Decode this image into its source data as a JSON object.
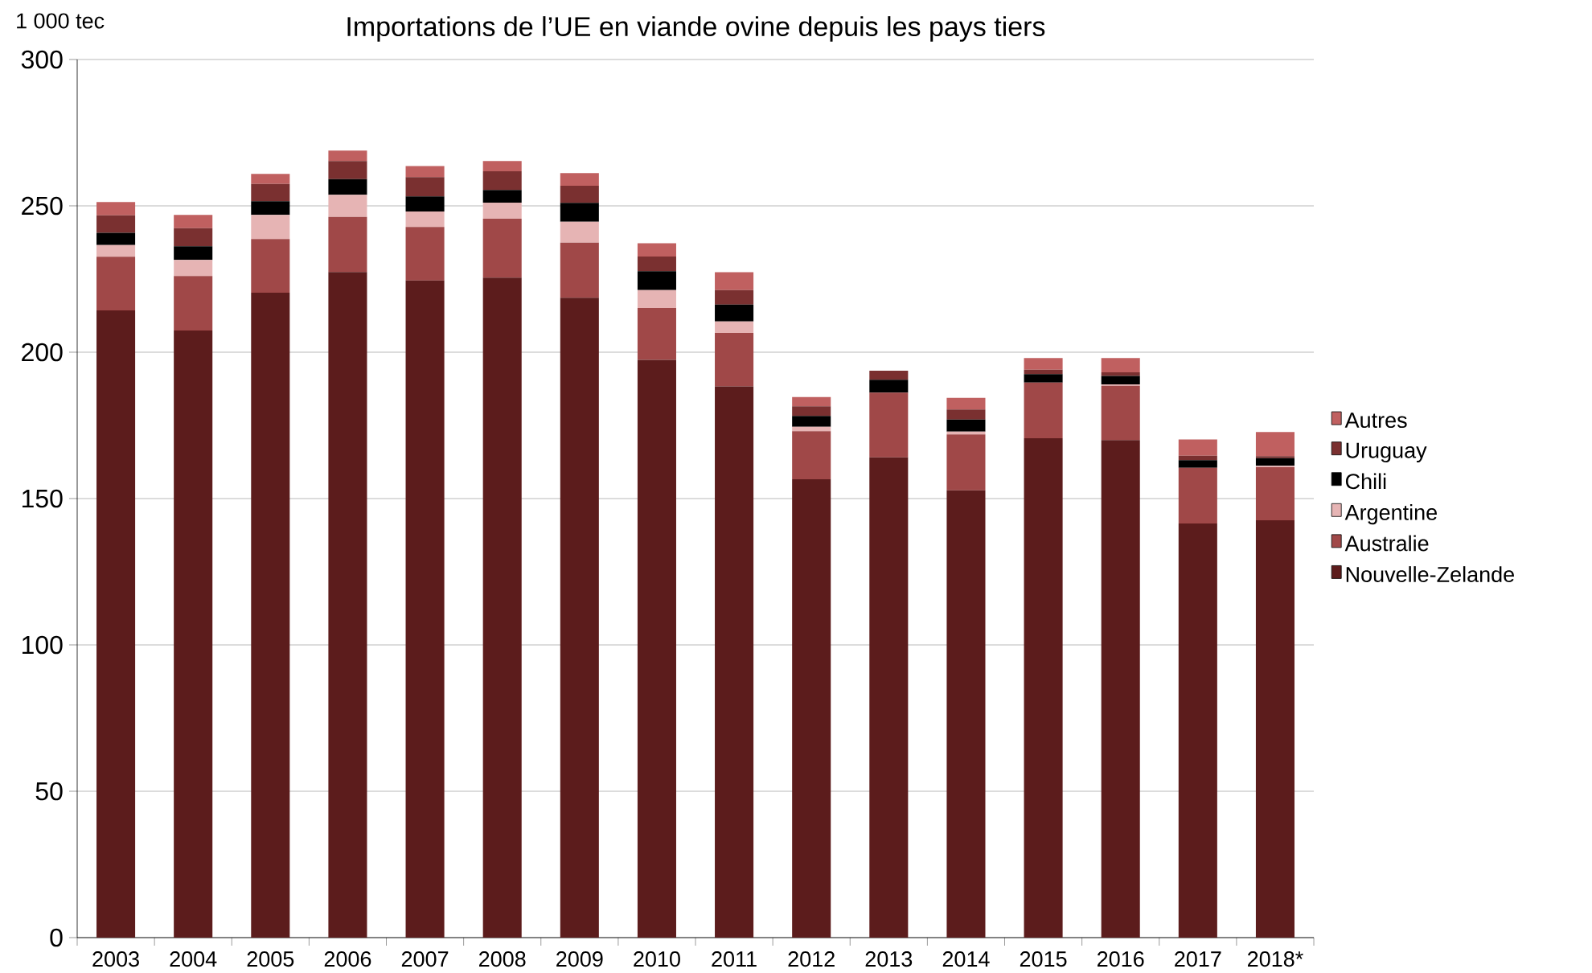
{
  "chart_data": {
    "type": "bar",
    "stacked": true,
    "title": "Importations de l’UE en viande ovine depuis les pays tiers",
    "ylabel": "1 000 tec",
    "categories": [
      "2003",
      "2004",
      "2005",
      "2006",
      "2007",
      "2008",
      "2009",
      "2010",
      "2011",
      "2012",
      "2013",
      "2014",
      "2015",
      "2016",
      "2017",
      "2018*"
    ],
    "series": [
      {
        "name": "Nouvelle-Zelande",
        "color": "#5c1c1c",
        "values": [
          214.3,
          207.4,
          220.3,
          227.4,
          224.5,
          225.5,
          218.6,
          197.4,
          188.3,
          156.6,
          164.1,
          152.8,
          170.6,
          170.0,
          141.5,
          142.6
        ]
      },
      {
        "name": "Australie",
        "color": "#a04848",
        "values": [
          18.3,
          18.6,
          18.4,
          18.8,
          18.3,
          20.1,
          18.8,
          17.7,
          18.3,
          16.4,
          22.1,
          19.1,
          19.0,
          18.5,
          19.0,
          18.1
        ]
      },
      {
        "name": "Argentine",
        "color": "#e6b4b4",
        "values": [
          4.0,
          5.5,
          8.2,
          7.6,
          5.3,
          5.5,
          7.2,
          6.1,
          3.9,
          1.5,
          null,
          1.0,
          null,
          0.5,
          null,
          0.5
        ]
      },
      {
        "name": "Chili",
        "color": "#000000",
        "values": [
          4.2,
          4.7,
          4.7,
          5.3,
          5.1,
          4.3,
          6.4,
          6.5,
          5.8,
          3.7,
          4.4,
          4.1,
          2.9,
          2.9,
          2.6,
          2.6
        ]
      },
      {
        "name": "Uruguay",
        "color": "#7a3030",
        "values": [
          6.0,
          6.2,
          5.9,
          6.2,
          6.6,
          6.4,
          5.9,
          5.0,
          4.9,
          3.3,
          3.1,
          3.4,
          1.5,
          1.2,
          1.5,
          0.7
        ]
      },
      {
        "name": "Autres",
        "color": "#c06060",
        "values": [
          4.5,
          4.5,
          3.4,
          3.6,
          3.8,
          3.5,
          4.3,
          4.5,
          6.1,
          3.2,
          0,
          4.0,
          4.0,
          4.9,
          5.6,
          8.2
        ]
      }
    ],
    "ylim": [
      0,
      300
    ],
    "yticks": [
      0,
      50,
      100,
      150,
      200,
      250,
      300
    ],
    "grid": "y",
    "legend": "right"
  }
}
